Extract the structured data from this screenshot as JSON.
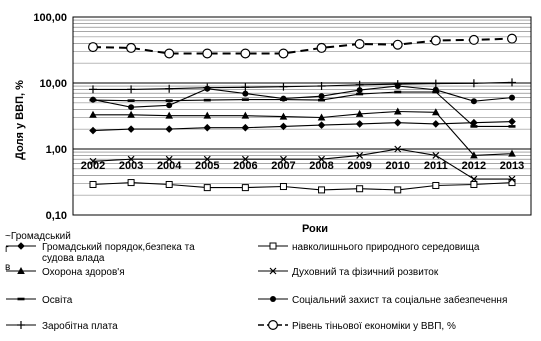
{
  "chart_data": {
    "type": "line",
    "y_scale": "log",
    "ylim": [
      0.1,
      100
    ],
    "ylabel": "Доля у ВВП, %",
    "xlabel": "Роки",
    "x": [
      "2002",
      "2003",
      "2004",
      "2005",
      "2006",
      "2007",
      "2008",
      "2009",
      "2010",
      "2011",
      "2012",
      "2013"
    ],
    "y_ticks": [
      "100,00",
      "10,00",
      "1,00",
      "0,10"
    ],
    "grid": "horizontal",
    "legend_position": "bottom",
    "series": [
      {
        "key": "s1",
        "name": "Громадський порядок,безпека та судова влада",
        "name_lines": [
          "Громадський порядок,безпека та",
          "судова влада"
        ],
        "marker": "diamond",
        "dash": "solid",
        "color": "#000000",
        "values": [
          1.9,
          2.0,
          2.0,
          2.1,
          2.1,
          2.2,
          2.3,
          2.4,
          2.5,
          2.4,
          2.5,
          2.6
        ]
      },
      {
        "key": "s2",
        "name": "навколишнього природного середовища",
        "name_lines": [
          "навколишнього природного середовища"
        ],
        "marker": "square-open",
        "dash": "solid",
        "color": "#000000",
        "values": [
          0.29,
          0.31,
          0.29,
          0.26,
          0.26,
          0.27,
          0.24,
          0.25,
          0.24,
          0.28,
          0.29,
          0.31
        ]
      },
      {
        "key": "s3",
        "name": "Охорона здоров'я",
        "name_lines": [
          "Охорона здоров'я"
        ],
        "marker": "triangle",
        "dash": "solid",
        "color": "#000000",
        "values": [
          3.3,
          3.3,
          3.2,
          3.2,
          3.2,
          3.1,
          3.0,
          3.4,
          3.7,
          3.6,
          0.8,
          0.85
        ]
      },
      {
        "key": "s4",
        "name": "Духовний та фізичний розвиток",
        "name_lines": [
          "Духовний та фізичний розвиток"
        ],
        "marker": "x",
        "dash": "solid",
        "color": "#000000",
        "values": [
          0.65,
          0.7,
          0.7,
          0.7,
          0.7,
          0.7,
          0.7,
          0.8,
          1.0,
          0.8,
          0.35,
          0.35
        ]
      },
      {
        "key": "s5",
        "name": "Освіта",
        "name_lines": [
          "Освіта"
        ],
        "marker": "dash",
        "dash": "solid",
        "color": "#000000",
        "values": [
          5.5,
          5.4,
          5.4,
          5.5,
          5.6,
          5.6,
          5.5,
          6.8,
          7.3,
          7.3,
          2.2,
          2.2
        ]
      },
      {
        "key": "s6",
        "name": "Соціальний захист та соціальне забезпечення",
        "name_lines": [
          "Соціальний захист та соціальне забезпечення"
        ],
        "marker": "circle",
        "dash": "solid",
        "color": "#000000",
        "values": [
          5.6,
          4.3,
          4.6,
          8.2,
          6.9,
          5.8,
          6.3,
          7.8,
          9.0,
          7.9,
          5.3,
          6.0
        ]
      },
      {
        "key": "s7",
        "name": "Заробітна плата",
        "name_lines": [
          "Заробітна плата"
        ],
        "marker": "plus",
        "dash": "solid",
        "color": "#000000",
        "values": [
          8.0,
          8.0,
          8.2,
          8.5,
          8.6,
          8.8,
          9.0,
          9.4,
          9.6,
          9.8,
          9.9,
          10.2
        ]
      },
      {
        "key": "s8",
        "name": "Рівень тіньової економіки у ВВП, %",
        "name_lines": [
          "Рівень тіньової економіки у ВВП, %"
        ],
        "marker": "circle-open",
        "dash": "dashed",
        "color": "#000000",
        "values": [
          35,
          34,
          28,
          28,
          28,
          28,
          34,
          39,
          38,
          44,
          45,
          47
        ]
      }
    ]
  },
  "overlay": {
    "stray_label_1": "~Громадський",
    "stray_label_2": "г",
    "stray_label_3": "в"
  }
}
